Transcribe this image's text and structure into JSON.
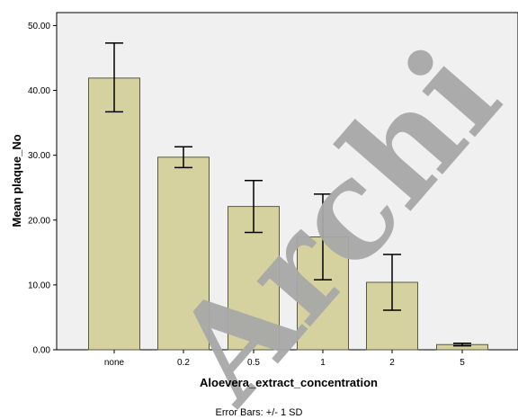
{
  "chart_data": {
    "type": "bar",
    "categories": [
      "none",
      "0.2",
      "0.5",
      "1",
      "2",
      "5"
    ],
    "values": [
      41.9,
      29.7,
      22.1,
      17.4,
      10.4,
      0.8
    ],
    "error_lower": [
      36.7,
      28.1,
      18.1,
      10.8,
      6.1,
      0.6
    ],
    "error_upper": [
      47.3,
      31.3,
      26.1,
      24.0,
      14.7,
      1.0
    ],
    "xlabel": "Aloevera_extract_concentration",
    "ylabel": "Mean plaque_No",
    "ylim": [
      0,
      52
    ],
    "yticks": [
      0,
      10,
      20,
      30,
      40,
      50
    ],
    "ytick_labels": [
      "0.00",
      "10.00",
      "20.00",
      "30.00",
      "40.00",
      "50.00"
    ],
    "footnote": "Error Bars: +/- 1 SD",
    "watermark": "Archi",
    "grid": false,
    "bar_color": "#d6d2a0",
    "bar_edge_color": "#5a5a3c",
    "plot_background": "#f0f0f0"
  }
}
